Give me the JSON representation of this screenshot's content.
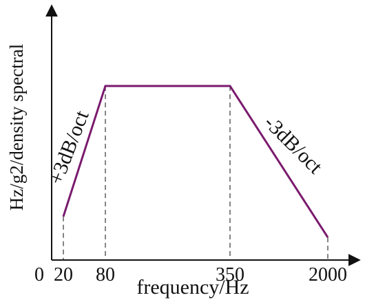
{
  "chart_data": {
    "type": "line",
    "title": "",
    "xlabel": "frequency/Hz",
    "ylabel": "Hz/g2/density spectral",
    "origin_label": "0",
    "x_ticks": [
      "20",
      "80",
      "350",
      "2000"
    ],
    "series": [
      {
        "x": [
          20,
          80,
          350,
          2000
        ],
        "y": [
          0.25,
          1.0,
          1.0,
          0.13
        ],
        "color": "#7a1a6e"
      }
    ],
    "annotations": [
      {
        "text": "+3dB/oct",
        "segment": "rise"
      },
      {
        "text": "-3dB/oct",
        "segment": "fall"
      }
    ],
    "x_scale": "categorical-ticks",
    "ylim": [
      0,
      1.2
    ],
    "grid": false,
    "dashed_guides": true
  }
}
